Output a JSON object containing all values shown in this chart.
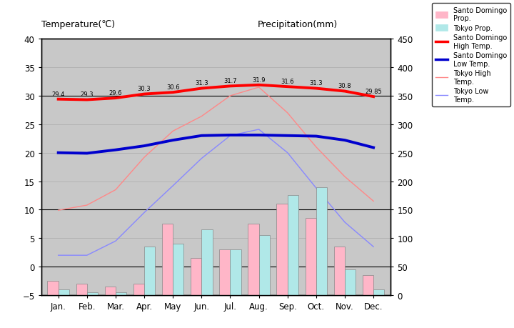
{
  "months": [
    "Jan.",
    "Feb.",
    "Mar.",
    "Apr.",
    "May",
    "Jun.",
    "Jul.",
    "Aug.",
    "Sep.",
    "Oct.",
    "Nov.",
    "Dec."
  ],
  "sd_high": [
    29.4,
    29.3,
    29.6,
    30.3,
    30.6,
    31.3,
    31.7,
    31.9,
    31.6,
    31.3,
    30.8,
    29.85
  ],
  "sd_low": [
    20.0,
    19.9,
    20.5,
    21.2,
    22.2,
    23.0,
    23.1,
    23.1,
    23.0,
    22.9,
    22.2,
    20.9
  ],
  "tokyo_high": [
    9.9,
    10.8,
    13.5,
    19.2,
    23.8,
    26.4,
    30.0,
    31.5,
    27.0,
    21.0,
    15.8,
    11.5
  ],
  "tokyo_low": [
    2.0,
    2.0,
    4.5,
    9.5,
    14.2,
    19.0,
    23.0,
    24.1,
    20.0,
    13.8,
    7.8,
    3.5
  ],
  "sd_precip_mm": [
    25,
    20,
    15,
    20,
    125,
    65,
    80,
    125,
    160,
    135,
    85,
    35
  ],
  "tokyo_precip_mm": [
    10,
    5,
    5,
    85,
    90,
    115,
    80,
    105,
    175,
    190,
    45,
    10
  ],
  "sd_high_color": "#ff0000",
  "sd_low_color": "#0000cd",
  "tokyo_high_color": "#ff8888",
  "tokyo_low_color": "#8888ff",
  "sd_precip_color": "#ffb6c8",
  "tokyo_precip_color": "#b0e8e8",
  "bg_color": "#c8c8c8",
  "ylim_temp": [
    -5,
    40
  ],
  "ylim_precip": [
    0,
    450
  ],
  "title_left": "Temperature(℃)",
  "title_right": "Precipitation(mm)"
}
